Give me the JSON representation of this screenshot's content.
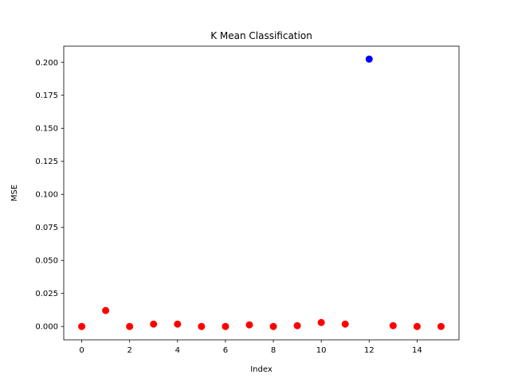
{
  "chart_data": {
    "type": "scatter",
    "title": "K Mean Classification",
    "xlabel": "Index",
    "ylabel": "MSE",
    "xlim": [
      -0.75,
      15.75
    ],
    "ylim": [
      -0.0101,
      0.2122
    ],
    "xticks": [
      0,
      2,
      4,
      6,
      8,
      10,
      12,
      14
    ],
    "yticks": [
      0.0,
      0.025,
      0.05,
      0.075,
      0.1,
      0.125,
      0.15,
      0.175,
      0.2
    ],
    "ytick_labels": [
      "0.000",
      "0.025",
      "0.050",
      "0.075",
      "0.100",
      "0.125",
      "0.150",
      "0.175",
      "0.200"
    ],
    "grid": false,
    "legend": "none",
    "colors": {
      "cluster_a": "#ff0000",
      "cluster_b": "#0000ff"
    },
    "points": [
      {
        "x": 0,
        "y": 0.0,
        "color": "#ff0000"
      },
      {
        "x": 1,
        "y": 0.0121,
        "color": "#ff0000"
      },
      {
        "x": 2,
        "y": 0.0,
        "color": "#ff0000"
      },
      {
        "x": 3,
        "y": 0.0018,
        "color": "#ff0000"
      },
      {
        "x": 4,
        "y": 0.0018,
        "color": "#ff0000"
      },
      {
        "x": 5,
        "y": 0.0,
        "color": "#ff0000"
      },
      {
        "x": 6,
        "y": 0.0,
        "color": "#ff0000"
      },
      {
        "x": 7,
        "y": 0.0012,
        "color": "#ff0000"
      },
      {
        "x": 8,
        "y": 0.0,
        "color": "#ff0000"
      },
      {
        "x": 9,
        "y": 0.0006,
        "color": "#ff0000"
      },
      {
        "x": 10,
        "y": 0.003,
        "color": "#ff0000"
      },
      {
        "x": 11,
        "y": 0.0018,
        "color": "#ff0000"
      },
      {
        "x": 12,
        "y": 0.2024,
        "color": "#0000ff"
      },
      {
        "x": 13,
        "y": 0.0006,
        "color": "#ff0000"
      },
      {
        "x": 14,
        "y": 0.0,
        "color": "#ff0000"
      },
      {
        "x": 15,
        "y": 0.0,
        "color": "#ff0000"
      }
    ]
  }
}
